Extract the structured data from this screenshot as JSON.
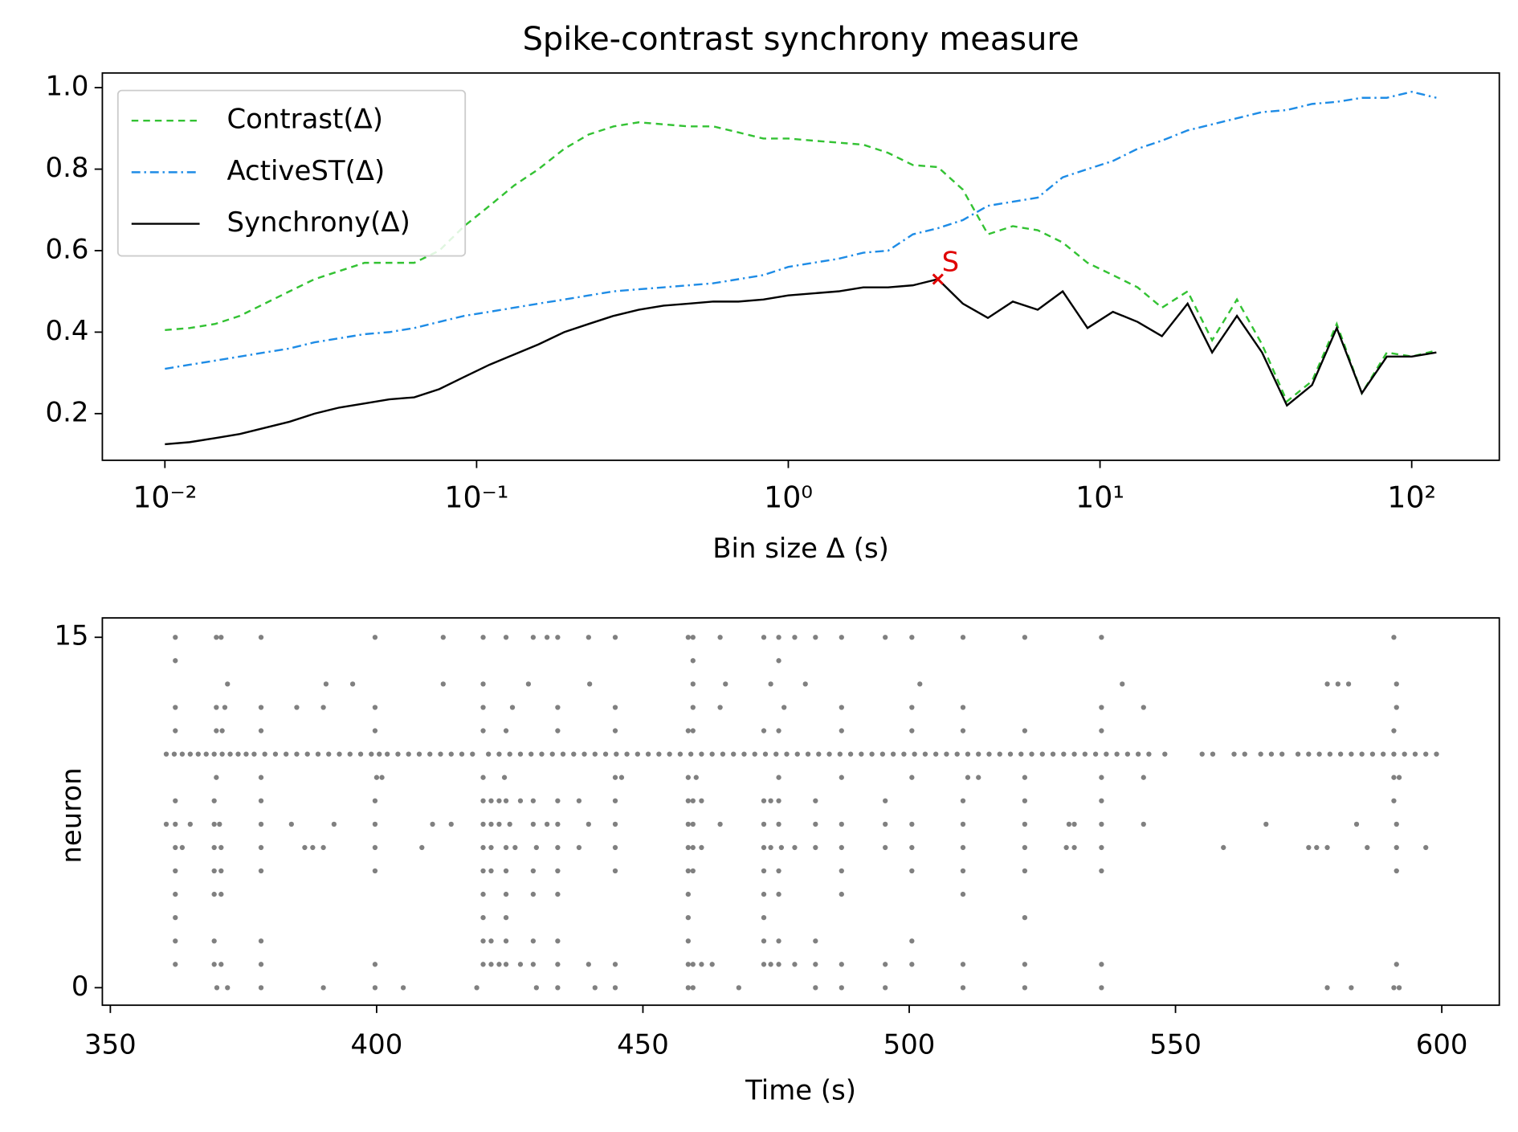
{
  "chart_data": [
    {
      "type": "line",
      "title": "Spike-contrast synchrony measure",
      "x_label": "Bin size Δ (s)",
      "log_x": true,
      "x": [
        0.01,
        0.012,
        0.0145,
        0.0174,
        0.0209,
        0.0251,
        0.0302,
        0.0363,
        0.0437,
        0.0525,
        0.0631,
        0.0759,
        0.0912,
        0.11,
        0.132,
        0.158,
        0.191,
        0.229,
        0.275,
        0.331,
        0.398,
        0.479,
        0.575,
        0.692,
        0.832,
        1.0,
        1.2,
        1.45,
        1.74,
        2.09,
        2.51,
        3.02,
        3.63,
        4.37,
        5.25,
        6.31,
        7.59,
        9.12,
        11.0,
        13.2,
        15.8,
        19.1,
        22.9,
        27.5,
        33.1,
        39.8,
        47.9,
        57.5,
        69.2,
        83.2,
        100,
        120
      ],
      "series": [
        {
          "name": "Contrast(Δ)",
          "color": "#33c233",
          "dash": "7,5",
          "values": [
            0.405,
            0.41,
            0.42,
            0.44,
            0.47,
            0.5,
            0.53,
            0.55,
            0.57,
            0.57,
            0.57,
            0.6,
            0.66,
            0.71,
            0.76,
            0.8,
            0.85,
            0.885,
            0.905,
            0.915,
            0.91,
            0.905,
            0.905,
            0.89,
            0.875,
            0.875,
            0.87,
            0.865,
            0.86,
            0.84,
            0.81,
            0.805,
            0.75,
            0.64,
            0.66,
            0.65,
            0.62,
            0.57,
            0.54,
            0.51,
            0.46,
            0.5,
            0.38,
            0.48,
            0.37,
            0.23,
            0.28,
            0.42,
            0.25,
            0.35,
            0.34,
            0.355
          ]
        },
        {
          "name": "ActiveST(Δ)",
          "color": "#1e8ce6",
          "dash": "9,4,2,4",
          "values": [
            0.31,
            0.32,
            0.33,
            0.34,
            0.35,
            0.36,
            0.375,
            0.385,
            0.395,
            0.4,
            0.41,
            0.425,
            0.44,
            0.45,
            0.46,
            0.47,
            0.48,
            0.49,
            0.5,
            0.505,
            0.51,
            0.515,
            0.52,
            0.53,
            0.54,
            0.56,
            0.57,
            0.58,
            0.595,
            0.6,
            0.64,
            0.655,
            0.675,
            0.71,
            0.72,
            0.73,
            0.78,
            0.8,
            0.82,
            0.85,
            0.87,
            0.895,
            0.91,
            0.925,
            0.94,
            0.945,
            0.96,
            0.965,
            0.975,
            0.975,
            0.99,
            0.975
          ]
        },
        {
          "name": "Synchrony(Δ)",
          "color": "#000000",
          "dash": "",
          "values": [
            0.125,
            0.13,
            0.14,
            0.15,
            0.165,
            0.18,
            0.2,
            0.215,
            0.225,
            0.235,
            0.24,
            0.26,
            0.29,
            0.32,
            0.345,
            0.37,
            0.4,
            0.42,
            0.44,
            0.455,
            0.465,
            0.47,
            0.475,
            0.475,
            0.48,
            0.49,
            0.495,
            0.5,
            0.51,
            0.51,
            0.515,
            0.53,
            0.47,
            0.435,
            0.475,
            0.455,
            0.5,
            0.41,
            0.45,
            0.425,
            0.39,
            0.47,
            0.35,
            0.44,
            0.35,
            0.22,
            0.27,
            0.41,
            0.25,
            0.34,
            0.34,
            0.35
          ]
        }
      ],
      "marker": {
        "x": 3.02,
        "y": 0.53,
        "label": "S",
        "color": "#e00000"
      },
      "xlim": [
        0.0063,
        191
      ],
      "ylim": [
        0.0855,
        1.036
      ],
      "xticks": [
        {
          "value": 0.01,
          "label": "10⁻²"
        },
        {
          "value": 0.1,
          "label": "10⁻¹"
        },
        {
          "value": 1,
          "label": "10⁰"
        },
        {
          "value": 10,
          "label": "10¹"
        },
        {
          "value": 100,
          "label": "10²"
        }
      ],
      "yticks": [
        0.2,
        0.4,
        0.6,
        0.8,
        {
          "value": 1,
          "label": "1.0"
        }
      ],
      "legend": "upper left"
    },
    {
      "type": "raster",
      "x_label": "Time (s)",
      "y_label": "neuron",
      "color": "#808080",
      "spike_times": [
        [
          370,
          372,
          378.3,
          390,
          399.7,
          405,
          418.8,
          430,
          434,
          441,
          444.8,
          458.5,
          459.4,
          468,
          482.4,
          487.3,
          495.5,
          510.1,
          521.7,
          536.1,
          578.5,
          583,
          591,
          592
        ],
        [
          362.2,
          369.5,
          370.8,
          378.3,
          399.7,
          420,
          421.5,
          423,
          424.3,
          427,
          429.4,
          434,
          439.8,
          444.8,
          458.5,
          459.4,
          461,
          463,
          472.7,
          474,
          475.5,
          478.5,
          482.4,
          487.3,
          495.5,
          500.5,
          510.1,
          521.7,
          536.1,
          591.5
        ],
        [
          362.2,
          369.5,
          378.3,
          420,
          421.5,
          424.3,
          429.4,
          434,
          458.5,
          472.7,
          475.5,
          482.4,
          500.5
        ],
        [
          362.2,
          420,
          424.3,
          458.5,
          472.7,
          521.7
        ],
        [
          362.2,
          369.5,
          370.8,
          420,
          424.3,
          429.4,
          434,
          458.5,
          472.7,
          475.5,
          487.3,
          510.1
        ],
        [
          362.2,
          369.5,
          370.8,
          378.3,
          399.7,
          420,
          421.5,
          424.3,
          429.4,
          434,
          444.8,
          458.5,
          459.4,
          472.7,
          475.5,
          487.3,
          500.5,
          510.1,
          521.7,
          536.1,
          591.5
        ],
        [
          362.2,
          363.5,
          369.5,
          370.8,
          378.3,
          386.5,
          388,
          390,
          399.7,
          408.5,
          420,
          421.5,
          424.3,
          426,
          430,
          434,
          438,
          444.8,
          458.5,
          459.4,
          461,
          472.7,
          474,
          476,
          478.5,
          482.4,
          487.3,
          495.5,
          500.5,
          510.1,
          521.7,
          529.5,
          531,
          536.1,
          559,
          575,
          576.5,
          578.5,
          586,
          591.5,
          597
        ],
        [
          360.5,
          362.2,
          365,
          369.5,
          370.5,
          378.3,
          384,
          392,
          399.7,
          410.5,
          414,
          420,
          421.5,
          423,
          425,
          429.4,
          432,
          434,
          439.8,
          444.8,
          458.5,
          459.4,
          464.5,
          472.7,
          475.5,
          482.4,
          487.3,
          495.5,
          500.5,
          510.1,
          521.7,
          530,
          531,
          536.1,
          544,
          567,
          584,
          591.5
        ],
        [
          362.2,
          369.5,
          378.3,
          399.7,
          420,
          421.5,
          423,
          424.3,
          427,
          429.4,
          434,
          438,
          444.8,
          458.5,
          459.4,
          461,
          472.7,
          474,
          475.5,
          482.4,
          495.5,
          510.1,
          521.7,
          536.1,
          591
        ],
        [
          369.9,
          378.3,
          400,
          401,
          420,
          424,
          444.8,
          446,
          458.5,
          460,
          475.5,
          487.3,
          500.5,
          511,
          513,
          521.7,
          536.1,
          544,
          591,
          592
        ],
        [
          360.5,
          362,
          363.5,
          365,
          366.5,
          368,
          369.5,
          371,
          372.5,
          374,
          375.5,
          377,
          379,
          381,
          383,
          385,
          387,
          389,
          391,
          393,
          395,
          397,
          399,
          400.5,
          402,
          404,
          406,
          408,
          410,
          412,
          414,
          416,
          418,
          421,
          423,
          425,
          427,
          429,
          431,
          433,
          435,
          437,
          439,
          441,
          443,
          445,
          447,
          449,
          451,
          453,
          455,
          457,
          459,
          461,
          463,
          465,
          467,
          469,
          471,
          473,
          475,
          477,
          479,
          481,
          483,
          485,
          487,
          489,
          491,
          493,
          495,
          497,
          499,
          501,
          503,
          505,
          507,
          509,
          511,
          513,
          515,
          517,
          519,
          521,
          523,
          525,
          527,
          529,
          531,
          533,
          535,
          537,
          539,
          541,
          543,
          545,
          548,
          555,
          557,
          561,
          563,
          566,
          568,
          570,
          573,
          575,
          577,
          579,
          581,
          583,
          585,
          587,
          589,
          591,
          593,
          595,
          597,
          599
        ],
        [
          362.2,
          369.9,
          371,
          378.3,
          399.7,
          420,
          424.3,
          434,
          444.8,
          458.5,
          459.4,
          472.7,
          475.5,
          487.3,
          500.5,
          510.1,
          521.7,
          536.1,
          591
        ],
        [
          362.2,
          369.9,
          371.5,
          378.3,
          385,
          390,
          399.7,
          420,
          425.5,
          434,
          444.8,
          459.4,
          464.5,
          476.5,
          487.3,
          500.5,
          510.1,
          536.1,
          544,
          591.5
        ],
        [
          372,
          390.5,
          395.5,
          412.5,
          420,
          428.5,
          440,
          459.4,
          465.5,
          474,
          480.5,
          502,
          540,
          578.5,
          580.5,
          582.5,
          591.5
        ],
        [
          362.2,
          459.4,
          475.5
        ],
        [
          362.2,
          369.9,
          370.8,
          378.3,
          399.7,
          412.5,
          420,
          424.3,
          429.4,
          432,
          434,
          439.8,
          444.8,
          458.5,
          459.4,
          464.5,
          472.7,
          475.5,
          478.5,
          482.4,
          487.3,
          495.5,
          500.5,
          510.1,
          521.7,
          536.1,
          591
        ]
      ],
      "xlim": [
        348.5,
        610.8
      ],
      "ylim": [
        -0.75,
        15.83
      ],
      "xticks": [
        350,
        400,
        450,
        500,
        550,
        600
      ],
      "yticks": [
        0,
        15
      ]
    }
  ]
}
